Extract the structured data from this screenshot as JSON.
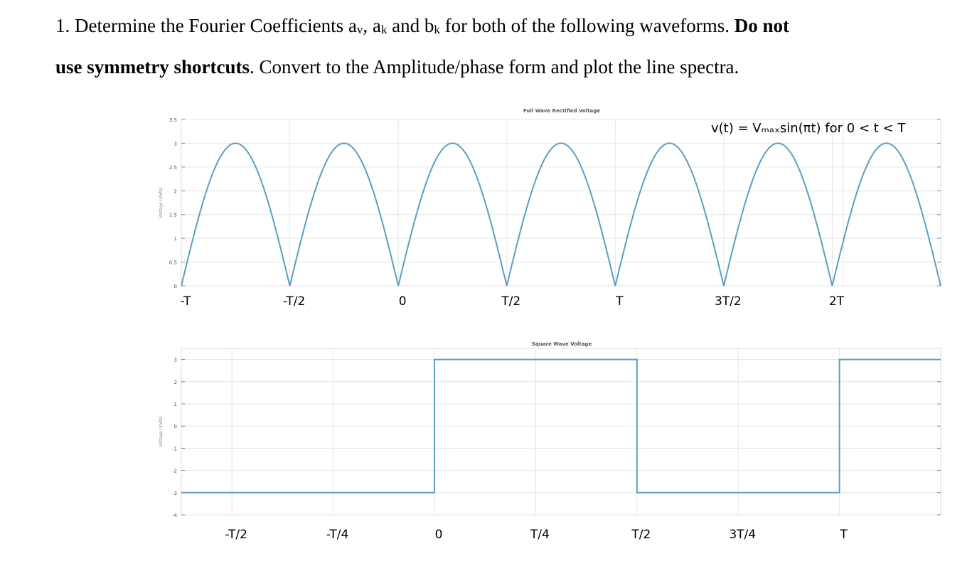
{
  "problem": {
    "number": "1.",
    "text_1": "Determine the Fourier Coefficients a",
    "sub_v": "v",
    "text_2": ", a",
    "sub_k1": "k",
    "text_3": " and b",
    "sub_k2": "k",
    "text_4": " for both of the following waveforms. ",
    "bold_1": "Do not",
    "bold_2": "use symmetry shortcuts",
    "text_5": ". Convert to the Amplitude/phase form and plot the line spectra."
  },
  "chart_data": [
    {
      "type": "line",
      "title": "Full Wave Rectified Voltage",
      "ylabel": "Voltage (Volts)",
      "annotation": "v(t) = Vₘₐₓsin(πt) for 0 < t < T",
      "x_tick_labels": [
        "-T",
        "-T/2",
        "0",
        "T/2",
        "T",
        "3T/2",
        "2T"
      ],
      "y_tick_labels": [
        "0",
        "0.5",
        "1",
        "1.5",
        "2",
        "2.5",
        "3",
        "3.5"
      ],
      "ylim": [
        0,
        3.5
      ],
      "xlim": [
        -1,
        2.5
      ],
      "grid": true,
      "series": [
        {
          "function": "abs(3*sin(pi*x))",
          "x_range": [
            -1,
            2.5
          ],
          "peak": 3
        }
      ],
      "color": "#5a9fc4"
    },
    {
      "type": "line",
      "title": "Square Wave Voltage",
      "ylabel": "Voltage (Volts)",
      "x_tick_labels": [
        "-T/2",
        "-T/4",
        "0",
        "T/4",
        "T/2",
        "3T/4",
        "T"
      ],
      "y_tick_labels": [
        "-4",
        "-3",
        "-2",
        "-1",
        "0",
        "1",
        "2",
        "3"
      ],
      "ylim": [
        -4,
        3.5
      ],
      "grid": true,
      "series": [
        {
          "x": [
            -0.5,
            0,
            0,
            0.5,
            0.5,
            1,
            1,
            1.25
          ],
          "y": [
            -3,
            -3,
            3,
            3,
            -3,
            -3,
            3,
            3
          ]
        }
      ],
      "color": "#5a9fc4"
    }
  ]
}
